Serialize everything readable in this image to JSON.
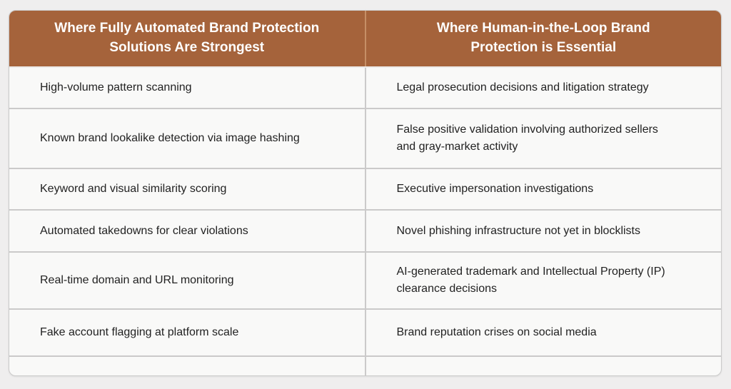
{
  "chart_data": {
    "type": "table",
    "title": "Automated vs Human-in-the-Loop Brand Protection comparison table",
    "columns": [
      "Where Fully Automated Brand Protection\nSolutions Are Strongest",
      "Where Human-in-the-Loop Brand\nProtection is Essential"
    ],
    "rows": [
      [
        "High-volume pattern scanning",
        "Legal prosecution decisions and litigation strategy"
      ],
      [
        "Known brand lookalike detection via image hashing",
        "False positive validation involving authorized sellers\nand gray-market activity"
      ],
      [
        "Keyword and visual similarity scoring",
        "Executive impersonation investigations"
      ],
      [
        "Automated takedowns for clear violations",
        "Novel phishing infrastructure not yet in blocklists"
      ],
      [
        "Real-time domain and URL monitoring",
        "AI-generated trademark and Intellectual Property (IP)\nclearance decisions"
      ],
      [
        "Fake account flagging at platform scale",
        "Brand reputation crises on social media"
      ],
      [
        "",
        ""
      ]
    ],
    "layout": {
      "grid": true,
      "legend_position": "none"
    }
  },
  "colors": {
    "page_bg": "#efeeee",
    "row_bg": "#f9f9f8",
    "header_bg": "#a5633b",
    "header_divider": "#c68f66",
    "header_text": "#ffffff",
    "divider": "#cbcaca",
    "text": "#222222"
  }
}
